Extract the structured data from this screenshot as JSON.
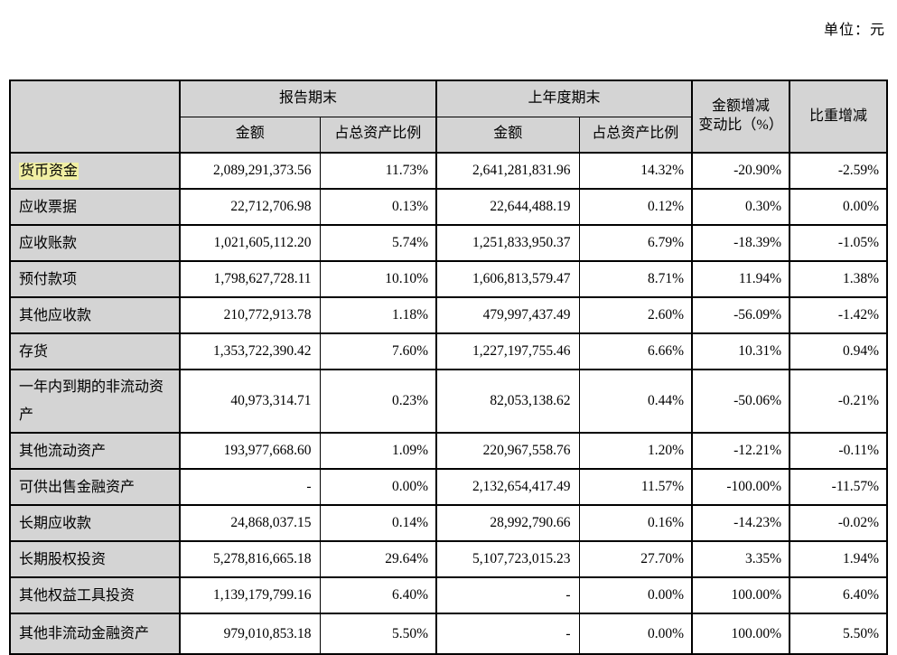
{
  "page": {
    "unit_label": "单位：元"
  },
  "colors": {
    "header_bg": "#d4d4d4",
    "label_bg": "#d4d4d4",
    "highlight": "#f1efa3",
    "border": "#000000",
    "page_bg": "#ffffff"
  },
  "table": {
    "header": {
      "report_period": "报告期末",
      "prior_period": "上年度期末",
      "amount": "金额",
      "ratio": "占总资产比例",
      "change_amount_line1": "金额增减",
      "change_amount_line2": "变动比（%）",
      "change_ratio": "比重增减"
    },
    "rows": [
      {
        "label": "货币资金",
        "highlight": true,
        "cur_amount": "2,089,291,373.56",
        "cur_ratio": "11.73%",
        "prev_amount": "2,641,281,831.96",
        "prev_ratio": "14.32%",
        "amount_change": "-20.90%",
        "ratio_change": "-2.59%"
      },
      {
        "label": "应收票据",
        "cur_amount": "22,712,706.98",
        "cur_ratio": "0.13%",
        "prev_amount": "22,644,488.19",
        "prev_ratio": "0.12%",
        "amount_change": "0.30%",
        "ratio_change": "0.00%"
      },
      {
        "label": "应收账款",
        "cur_amount": "1,021,605,112.20",
        "cur_ratio": "5.74%",
        "prev_amount": "1,251,833,950.37",
        "prev_ratio": "6.79%",
        "amount_change": "-18.39%",
        "ratio_change": "-1.05%"
      },
      {
        "label": "预付款项",
        "cur_amount": "1,798,627,728.11",
        "cur_ratio": "10.10%",
        "prev_amount": "1,606,813,579.47",
        "prev_ratio": "8.71%",
        "amount_change": "11.94%",
        "ratio_change": "1.38%"
      },
      {
        "label": "其他应收款",
        "cur_amount": "210,772,913.78",
        "cur_ratio": "1.18%",
        "prev_amount": "479,997,437.49",
        "prev_ratio": "2.60%",
        "amount_change": "-56.09%",
        "ratio_change": "-1.42%"
      },
      {
        "label": "存货",
        "cur_amount": "1,353,722,390.42",
        "cur_ratio": "7.60%",
        "prev_amount": "1,227,197,755.46",
        "prev_ratio": "6.66%",
        "amount_change": "10.31%",
        "ratio_change": "0.94%"
      },
      {
        "label": "一年内到期的非流动资产",
        "tall": true,
        "cur_amount": "40,973,314.71",
        "cur_ratio": "0.23%",
        "prev_amount": "82,053,138.62",
        "prev_ratio": "0.44%",
        "amount_change": "-50.06%",
        "ratio_change": "-0.21%"
      },
      {
        "label": "其他流动资产",
        "cur_amount": "193,977,668.60",
        "cur_ratio": "1.09%",
        "prev_amount": "220,967,558.76",
        "prev_ratio": "1.20%",
        "amount_change": "-12.21%",
        "ratio_change": "-0.11%"
      },
      {
        "label": "可供出售金融资产",
        "cur_amount": "-",
        "cur_ratio": "0.00%",
        "prev_amount": "2,132,654,417.49",
        "prev_ratio": "11.57%",
        "amount_change": "-100.00%",
        "ratio_change": "-11.57%"
      },
      {
        "label": "长期应收款",
        "cur_amount": "24,868,037.15",
        "cur_ratio": "0.14%",
        "prev_amount": "28,992,790.66",
        "prev_ratio": "0.16%",
        "amount_change": "-14.23%",
        "ratio_change": "-0.02%"
      },
      {
        "label": "长期股权投资",
        "cur_amount": "5,278,816,665.18",
        "cur_ratio": "29.64%",
        "prev_amount": "5,107,723,015.23",
        "prev_ratio": "27.70%",
        "amount_change": "3.35%",
        "ratio_change": "1.94%"
      },
      {
        "label": "其他权益工具投资",
        "cur_amount": "1,139,179,799.16",
        "cur_ratio": "6.40%",
        "prev_amount": "-",
        "prev_ratio": "0.00%",
        "amount_change": "100.00%",
        "ratio_change": "6.40%"
      },
      {
        "label": "其他非流动金融资产",
        "cur_amount": "979,010,853.18",
        "cur_ratio": "5.50%",
        "prev_amount": "-",
        "prev_ratio": "0.00%",
        "amount_change": "100.00%",
        "ratio_change": "5.50%"
      }
    ]
  }
}
